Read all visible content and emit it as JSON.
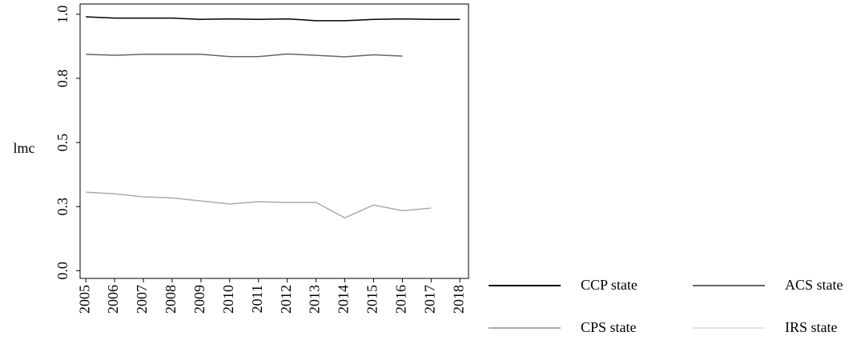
{
  "chart_data": {
    "type": "line",
    "y_label": "lmc",
    "x": [
      2005,
      2006,
      2007,
      2008,
      2009,
      2010,
      2011,
      2012,
      2013,
      2014,
      2015,
      2016,
      2017,
      2018
    ],
    "xlim": [
      2004.8,
      2018.3
    ],
    "xticks": [
      2005,
      2006,
      2007,
      2008,
      2009,
      2010,
      2011,
      2012,
      2013,
      2014,
      2015,
      2016,
      2017,
      2018
    ],
    "ylim": [
      -0.03,
      1.04
    ],
    "yticks": [
      {
        "value": 0,
        "label": "0.0"
      },
      {
        "value": 0.25,
        "label": "0.3"
      },
      {
        "value": 0.5,
        "label": "0.5"
      },
      {
        "value": 0.75,
        "label": "0.8"
      },
      {
        "value": 1,
        "label": "1.0"
      }
    ],
    "grid": false,
    "legend": "bottom-right",
    "series": [
      {
        "name": "CCP state",
        "color": "#000000",
        "values": [
          0.99,
          0.985,
          0.985,
          0.985,
          0.98,
          0.982,
          0.98,
          0.982,
          0.975,
          0.975,
          0.98,
          0.982,
          0.98,
          0.98
        ]
      },
      {
        "name": "ACS state",
        "color": "#666666",
        "values": [
          0.844,
          0.84,
          0.844,
          0.844,
          0.844,
          0.835,
          0.835,
          0.845,
          0.84,
          0.834,
          0.842,
          0.837,
          null,
          null
        ]
      },
      {
        "name": "CPS state",
        "color": "#aaaaaa",
        "values": [
          0.306,
          0.3,
          0.288,
          0.284,
          0.272,
          0.26,
          0.269,
          0.266,
          0.266,
          0.206,
          0.256,
          0.234,
          0.244,
          null
        ]
      },
      {
        "name": "IRS state",
        "color": "#e6e6e6",
        "values": [
          null,
          null,
          null,
          null,
          null,
          null,
          null,
          null,
          null,
          null,
          null,
          null,
          null,
          null
        ]
      }
    ]
  }
}
